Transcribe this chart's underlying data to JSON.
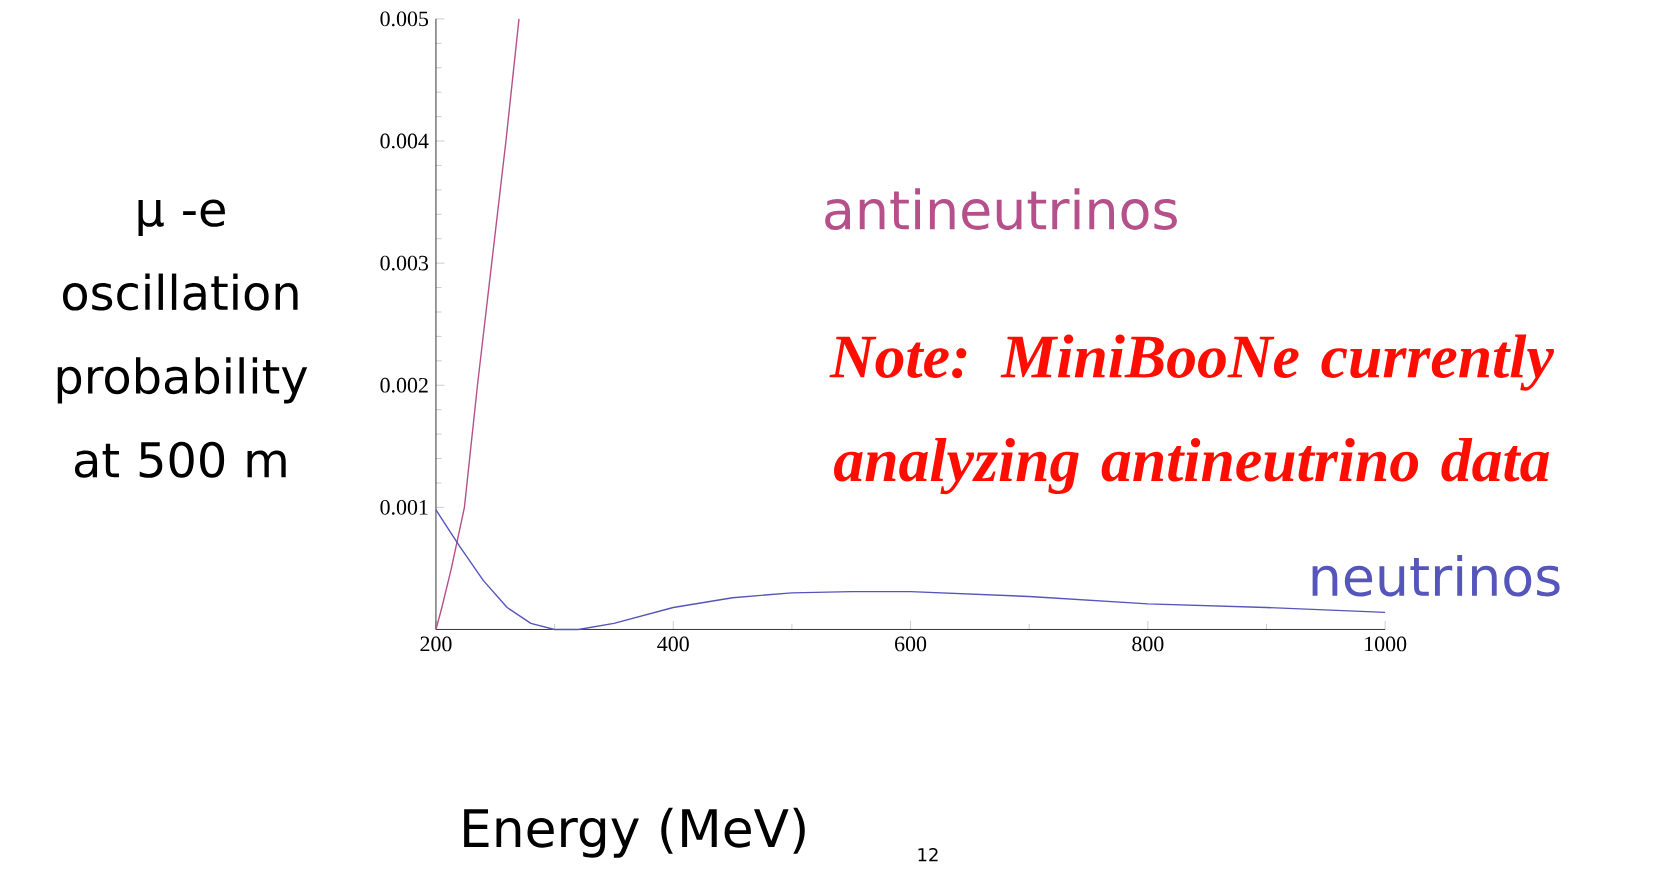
{
  "chart_data": {
    "type": "line",
    "ylabel": "μ -e oscillation probability at 500 m",
    "xlabel": "Energy (MeV)",
    "xlim": [
      200,
      1000
    ],
    "ylim": [
      0,
      0.005
    ],
    "xticks": [
      200,
      400,
      600,
      800,
      1000
    ],
    "yticks": [
      0.001,
      0.002,
      0.003,
      0.004,
      0.005
    ],
    "legend": false,
    "series": [
      {
        "name": "antineutrinos",
        "color": "#b5508a",
        "x": [
          200,
          205,
          213,
          224,
          235,
          247,
          259,
          270
        ],
        "values": [
          0,
          0.00018,
          0.0005,
          0.001,
          0.002,
          0.003,
          0.004,
          0.005
        ]
      },
      {
        "name": "neutrinos",
        "color": "#5555bb",
        "x": [
          200,
          220,
          240,
          260,
          280,
          300,
          320,
          350,
          400,
          450,
          500,
          550,
          600,
          700,
          800,
          900,
          1000
        ],
        "values": [
          0.00098,
          0.00068,
          0.0004,
          0.00018,
          5e-05,
          0,
          0,
          5e-05,
          0.00018,
          0.00026,
          0.0003,
          0.00031,
          0.00031,
          0.00027,
          0.00021,
          0.00018,
          0.00014
        ]
      }
    ],
    "annotations": [
      "Note: MiniBooNe currently analyzing antineutrino data",
      "12"
    ]
  }
}
